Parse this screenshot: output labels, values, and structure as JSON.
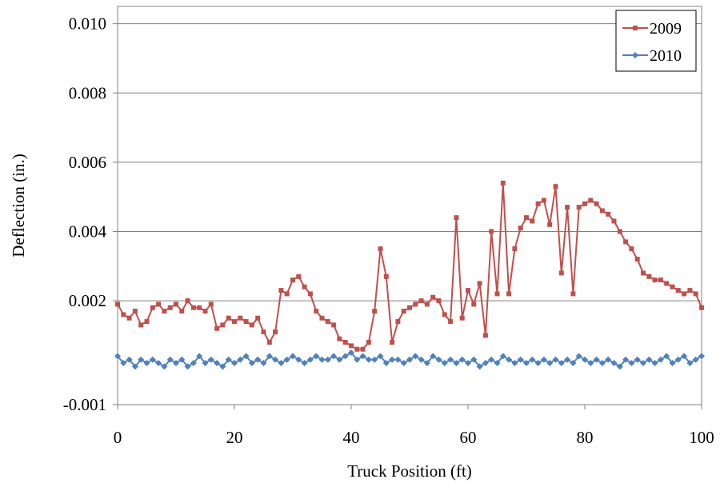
{
  "chart_data": {
    "type": "line",
    "xlabel": "Truck Position (ft)",
    "ylabel": "Deflection (in.)",
    "xlim": [
      0,
      100
    ],
    "ylim": [
      -0.001,
      0.0105
    ],
    "x_ticks": [
      0,
      20,
      40,
      60,
      80,
      100
    ],
    "x_tick_labels": [
      "0",
      "20",
      "40",
      "60",
      "80",
      "100"
    ],
    "y_ticks": [
      -0.001,
      0.002,
      0.004,
      0.006,
      0.008,
      0.01
    ],
    "y_tick_labels": [
      "-0.001",
      "0.002",
      "0.004",
      "0.006",
      "0.008",
      "0.010"
    ],
    "grid": "horizontal",
    "legend_position": "top-right",
    "series": [
      {
        "name": "2009",
        "color": "#c0504d",
        "marker": "square",
        "x": [
          0,
          1,
          2,
          3,
          4,
          5,
          6,
          7,
          8,
          9,
          10,
          11,
          12,
          13,
          14,
          15,
          16,
          17,
          18,
          19,
          20,
          21,
          22,
          23,
          24,
          25,
          26,
          27,
          28,
          29,
          30,
          31,
          32,
          33,
          34,
          35,
          36,
          37,
          38,
          39,
          40,
          41,
          42,
          43,
          44,
          45,
          46,
          47,
          48,
          49,
          50,
          51,
          52,
          53,
          54,
          55,
          56,
          57,
          58,
          59,
          60,
          61,
          62,
          63,
          64,
          65,
          66,
          67,
          68,
          69,
          70,
          71,
          72,
          73,
          74,
          75,
          76,
          77,
          78,
          79,
          80,
          81,
          82,
          83,
          84,
          85,
          86,
          87,
          88,
          89,
          90,
          91,
          92,
          93,
          94,
          95,
          96,
          97,
          98,
          99,
          100
        ],
        "values": [
          0.0019,
          0.0016,
          0.0015,
          0.0017,
          0.0013,
          0.0014,
          0.0018,
          0.0019,
          0.0017,
          0.0018,
          0.0019,
          0.0017,
          0.002,
          0.0018,
          0.0018,
          0.0017,
          0.0019,
          0.0012,
          0.0013,
          0.0015,
          0.0014,
          0.0015,
          0.0014,
          0.0013,
          0.0015,
          0.0011,
          0.0008,
          0.0011,
          0.0023,
          0.0022,
          0.0026,
          0.0027,
          0.0024,
          0.0022,
          0.0017,
          0.0015,
          0.0014,
          0.0013,
          0.0009,
          0.0008,
          0.0007,
          0.0006,
          0.0006,
          0.0008,
          0.0017,
          0.0035,
          0.0027,
          0.0008,
          0.0014,
          0.0017,
          0.0018,
          0.0019,
          0.002,
          0.0019,
          0.0021,
          0.002,
          0.0016,
          0.0014,
          0.0044,
          0.0015,
          0.0023,
          0.0019,
          0.0025,
          0.001,
          0.004,
          0.0022,
          0.0054,
          0.0022,
          0.0035,
          0.0041,
          0.0044,
          0.0043,
          0.0048,
          0.0049,
          0.0042,
          0.0053,
          0.0028,
          0.0047,
          0.0022,
          0.0047,
          0.0048,
          0.0049,
          0.0048,
          0.0046,
          0.0045,
          0.0043,
          0.004,
          0.0037,
          0.0035,
          0.0032,
          0.0028,
          0.0027,
          0.0026,
          0.0026,
          0.0025,
          0.0024,
          0.0023,
          0.0022,
          0.0023,
          0.0022,
          0.0018
        ]
      },
      {
        "name": "2010",
        "color": "#4f81bd",
        "marker": "diamond",
        "x": [
          0,
          1,
          2,
          3,
          4,
          5,
          6,
          7,
          8,
          9,
          10,
          11,
          12,
          13,
          14,
          15,
          16,
          17,
          18,
          19,
          20,
          21,
          22,
          23,
          24,
          25,
          26,
          27,
          28,
          29,
          30,
          31,
          32,
          33,
          34,
          35,
          36,
          37,
          38,
          39,
          40,
          41,
          42,
          43,
          44,
          45,
          46,
          47,
          48,
          49,
          50,
          51,
          52,
          53,
          54,
          55,
          56,
          57,
          58,
          59,
          60,
          61,
          62,
          63,
          64,
          65,
          66,
          67,
          68,
          69,
          70,
          71,
          72,
          73,
          74,
          75,
          76,
          77,
          78,
          79,
          80,
          81,
          82,
          83,
          84,
          85,
          86,
          87,
          88,
          89,
          90,
          91,
          92,
          93,
          94,
          95,
          96,
          97,
          98,
          99,
          100
        ],
        "values": [
          0.0004,
          0.0002,
          0.0003,
          0.0001,
          0.0003,
          0.0002,
          0.0003,
          0.0002,
          0.0001,
          0.0003,
          0.0002,
          0.0003,
          0.0001,
          0.0002,
          0.0004,
          0.0002,
          0.0003,
          0.0002,
          0.0001,
          0.0003,
          0.0002,
          0.0003,
          0.0004,
          0.0002,
          0.0003,
          0.0002,
          0.0004,
          0.0003,
          0.0002,
          0.0003,
          0.0004,
          0.0003,
          0.0002,
          0.0003,
          0.0004,
          0.0003,
          0.0003,
          0.0004,
          0.0003,
          0.0004,
          0.0005,
          0.0003,
          0.0004,
          0.0003,
          0.0003,
          0.0004,
          0.0002,
          0.0003,
          0.0003,
          0.0002,
          0.0003,
          0.0004,
          0.0003,
          0.0002,
          0.0004,
          0.0003,
          0.0002,
          0.0003,
          0.0002,
          0.0003,
          0.0002,
          0.0003,
          0.0001,
          0.0002,
          0.0003,
          0.0002,
          0.0004,
          0.0003,
          0.0002,
          0.0003,
          0.0002,
          0.0003,
          0.0002,
          0.0003,
          0.0002,
          0.0003,
          0.0002,
          0.0003,
          0.0002,
          0.0004,
          0.0003,
          0.0002,
          0.0003,
          0.0002,
          0.0003,
          0.0002,
          0.0001,
          0.0003,
          0.0002,
          0.0003,
          0.0002,
          0.0003,
          0.0002,
          0.0003,
          0.0004,
          0.0002,
          0.0003,
          0.0004,
          0.0002,
          0.0003,
          0.0004
        ]
      }
    ]
  }
}
